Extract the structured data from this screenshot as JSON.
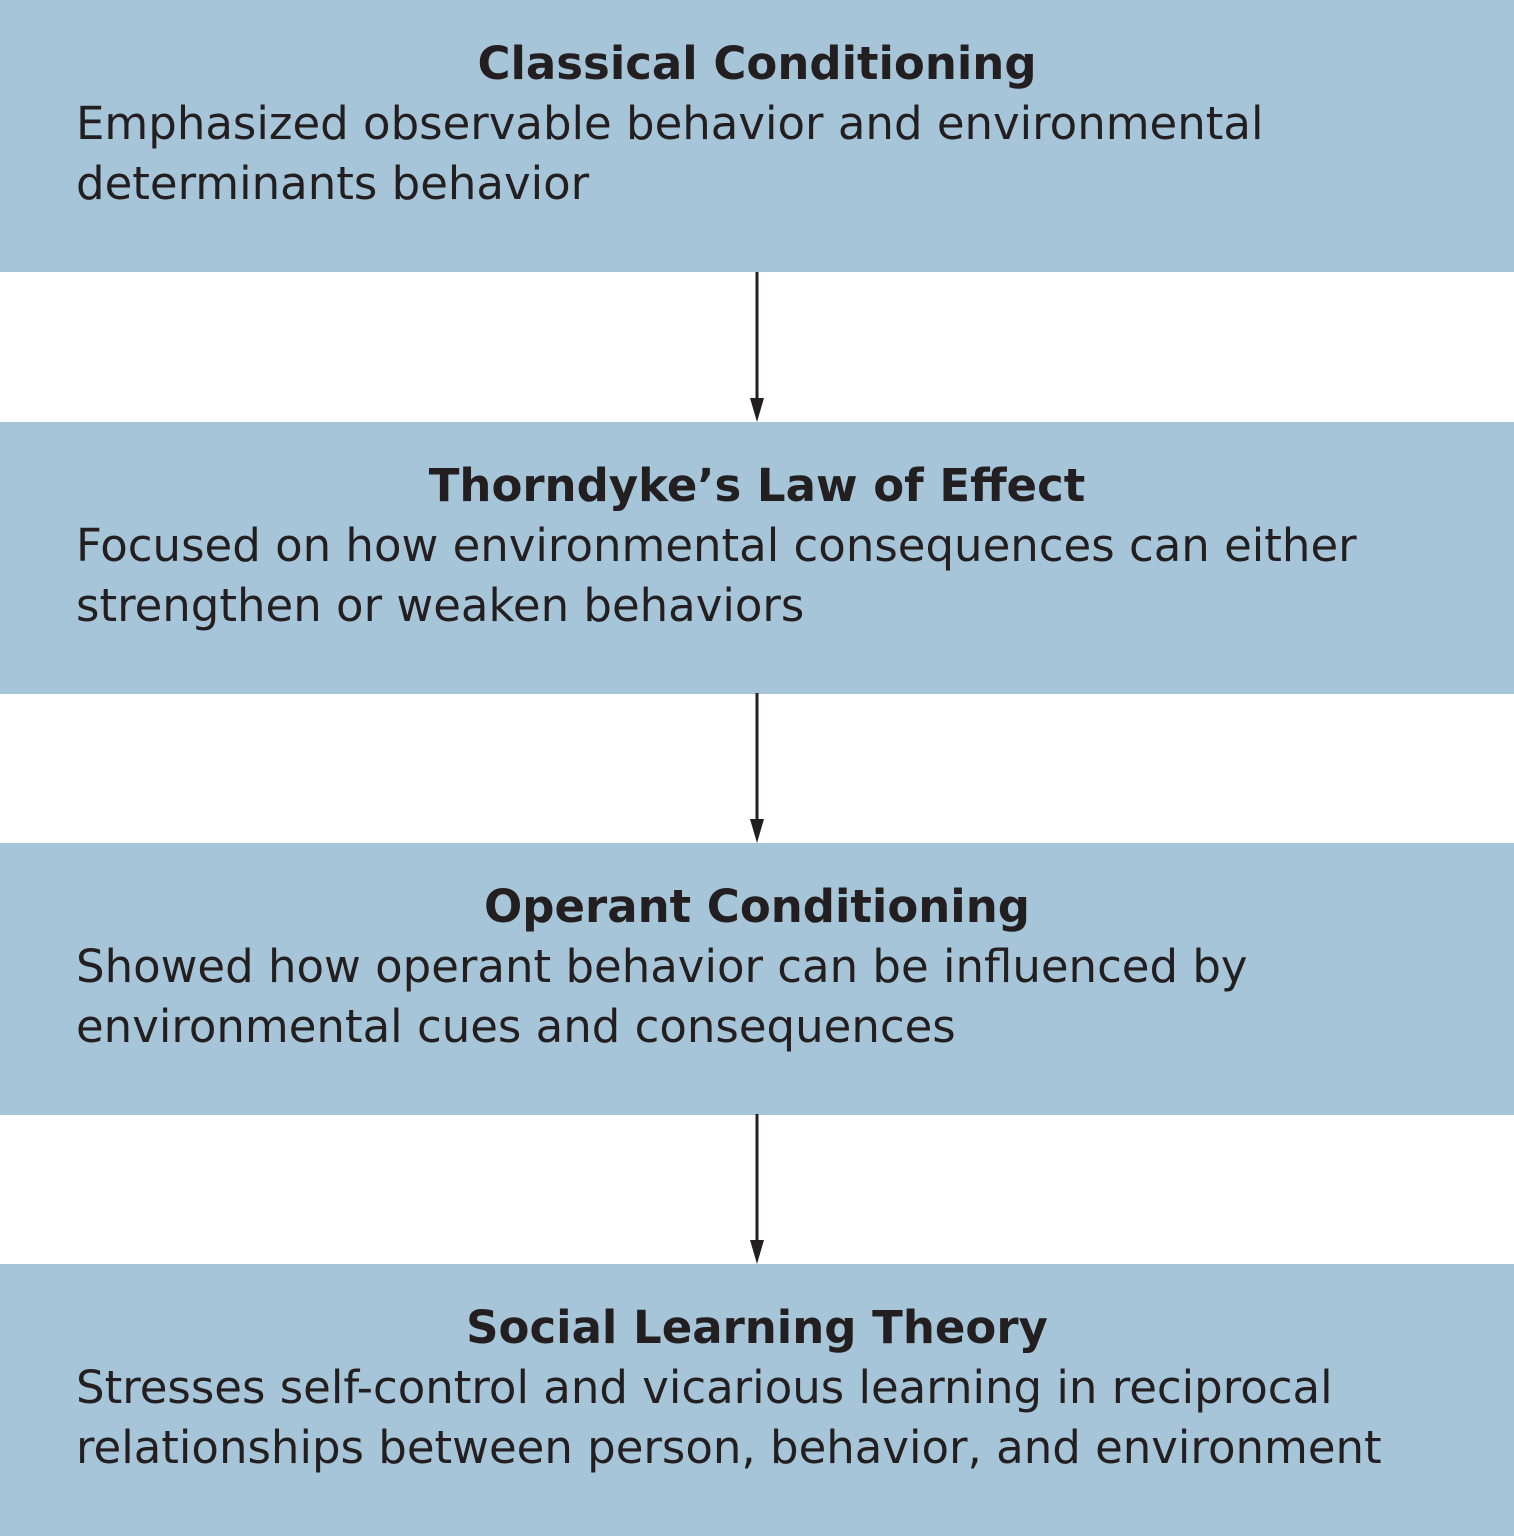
{
  "colors": {
    "box_fill": "#a7c5d8",
    "text": "#231f20",
    "arrow": "#231f20",
    "background": "#ffffff"
  },
  "stages": [
    {
      "title": "Classical Conditioning",
      "desc_line1": "Emphasized observable behavior and environmental",
      "desc_line2": "determinants behavior"
    },
    {
      "title": "Thorndyke’s Law of Effect",
      "desc_line1": "Focused on how environmental consequences can either",
      "desc_line2": "strengthen or weaken behaviors"
    },
    {
      "title": "Operant Conditioning",
      "desc_line1": "Showed how operant behavior can be influenced by",
      "desc_line2": "environmental cues and consequences"
    },
    {
      "title": "Social Learning Theory",
      "desc_line1": "Stresses self-control and vicarious learning in reciprocal",
      "desc_line2": "relationships between person, behavior, and environment"
    }
  ],
  "arrows": [
    {
      "from": "Classical Conditioning",
      "to": "Thorndyke’s Law of Effect",
      "icon": "arrow-down-icon"
    },
    {
      "from": "Thorndyke’s Law of Effect",
      "to": "Operant Conditioning",
      "icon": "arrow-down-icon"
    },
    {
      "from": "Operant Conditioning",
      "to": "Social Learning Theory",
      "icon": "arrow-down-icon"
    }
  ]
}
